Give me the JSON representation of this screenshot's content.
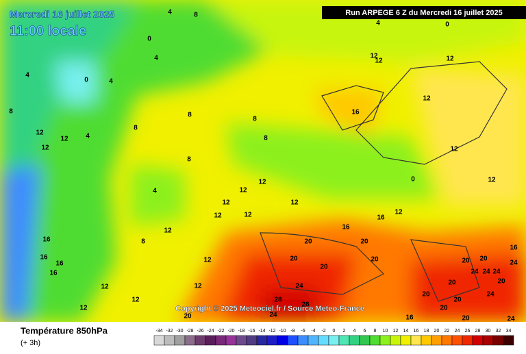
{
  "header": {
    "date": "Mercredi 16 juillet 2025",
    "time": "11:00 locale",
    "run": "Run ARPEGE 6 Z du Mercredi 16 juillet 2025"
  },
  "copyright": "Copyright © 2025 Meteociel.fr / Source Meteo-France",
  "legend": {
    "title": "Température 850hPa",
    "subtitle": "(+ 3h)",
    "values": [
      -34,
      -32,
      -30,
      -28,
      -26,
      -24,
      -22,
      -20,
      -18,
      -16,
      -14,
      -12,
      -10,
      -8,
      -6,
      -4,
      -2,
      0,
      2,
      4,
      6,
      8,
      10,
      12,
      14,
      16,
      18,
      20,
      22,
      24,
      26,
      28,
      30,
      32,
      34
    ],
    "colors": [
      "#d8d8d8",
      "#bcbcbc",
      "#a0a0a0",
      "#8c6e8c",
      "#6e3c6e",
      "#5a1e5a",
      "#7a2878",
      "#96329a",
      "#6e4a8c",
      "#503c82",
      "#2828a0",
      "#1e1ec8",
      "#0000e6",
      "#1e50ff",
      "#3c8cff",
      "#50b4ff",
      "#64dcff",
      "#78f0f0",
      "#50e6b4",
      "#32d282",
      "#32c850",
      "#50dc32",
      "#8cf01e",
      "#c8f50a",
      "#f0f000",
      "#ffe650",
      "#ffc800",
      "#ffa000",
      "#ff7800",
      "#ff5000",
      "#f02800",
      "#d20000",
      "#aa0000",
      "#780000",
      "#3c0000"
    ]
  },
  "contour_labels": [
    4,
    8,
    4,
    0,
    0,
    4,
    12,
    12,
    12,
    0,
    4,
    4,
    12,
    16,
    8,
    8,
    8,
    8,
    12,
    12,
    4,
    12,
    8,
    8,
    12,
    0,
    12,
    12,
    4,
    12,
    12,
    12,
    12,
    12,
    16,
    16,
    12,
    12,
    16,
    8,
    20,
    20,
    16,
    16,
    20,
    20,
    12,
    20,
    16,
    20,
    20,
    16,
    24,
    24,
    24,
    24,
    20,
    20,
    24,
    12,
    12,
    24,
    28,
    28,
    20,
    20,
    12,
    12,
    20,
    24,
    16,
    20,
    20,
    24
  ]
}
